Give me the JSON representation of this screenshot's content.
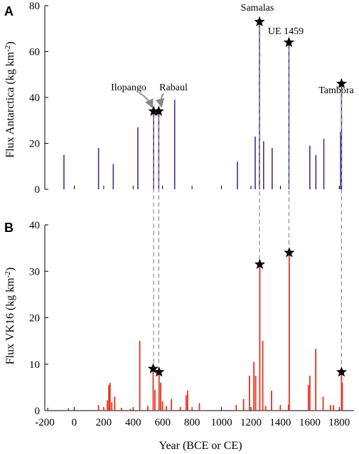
{
  "chart_data": [
    {
      "panel_label": "A",
      "type": "bar",
      "ylabel": "Flux Antarctica",
      "ylabel_unit": "(kg km",
      "ylabel_unit_exp": "-2",
      "ylabel_unit_end": ")",
      "ylim": [
        0,
        80
      ],
      "yticks": [
        "0",
        "20",
        "40",
        "60",
        "80"
      ],
      "xlim": [
        -200,
        1900
      ],
      "color": "#4b2a8c",
      "events": [
        {
          "x": -70,
          "y": 15
        },
        {
          "x": 165,
          "y": 18
        },
        {
          "x": 265,
          "y": 11
        },
        {
          "x": 432,
          "y": 27
        },
        {
          "x": 539,
          "y": 34
        },
        {
          "x": 574,
          "y": 34
        },
        {
          "x": 682,
          "y": 39
        },
        {
          "x": 1108,
          "y": 12
        },
        {
          "x": 1229,
          "y": 23
        },
        {
          "x": 1258,
          "y": 73
        },
        {
          "x": 1286,
          "y": 21
        },
        {
          "x": 1344,
          "y": 18
        },
        {
          "x": 1458,
          "y": 64
        },
        {
          "x": 1600,
          "y": 19
        },
        {
          "x": 1641,
          "y": 15
        },
        {
          "x": 1695,
          "y": 22
        },
        {
          "x": 1809,
          "y": 25
        },
        {
          "x": 1815,
          "y": 46
        }
      ],
      "stars": [
        {
          "x": 539,
          "y": 34
        },
        {
          "x": 574,
          "y": 34
        },
        {
          "x": 1258,
          "y": 73
        },
        {
          "x": 1458,
          "y": 64
        },
        {
          "x": 1815,
          "y": 46
        }
      ],
      "annotations": [
        {
          "text": "Samalas"
        },
        {
          "text": "UE 1459"
        },
        {
          "text": "Tambora"
        },
        {
          "text": "Ilopango"
        },
        {
          "text": "Rabaul"
        }
      ]
    },
    {
      "panel_label": "B",
      "type": "bar",
      "ylabel": "Flux VK16",
      "ylabel_unit": "(kg km",
      "ylabel_unit_exp": "-2",
      "ylabel_unit_end": ")",
      "ylim": [
        0,
        40
      ],
      "yticks": [
        "0",
        "10",
        "20",
        "30",
        "40"
      ],
      "xlim": [
        -200,
        1900
      ],
      "xticks": [
        "-200",
        "0",
        "200",
        "400",
        "600",
        "800",
        "1000",
        "1200",
        "1400",
        "1600",
        "1800"
      ],
      "xlabel": "Year (BCE or CE)",
      "color": "#e8321e",
      "events": [
        {
          "x": -180,
          "y": 0.6
        },
        {
          "x": -40,
          "y": 0.5
        },
        {
          "x": 165,
          "y": 1.2
        },
        {
          "x": 200,
          "y": 0.6
        },
        {
          "x": 225,
          "y": 2.2
        },
        {
          "x": 235,
          "y": 5.5
        },
        {
          "x": 243,
          "y": 6.0
        },
        {
          "x": 255,
          "y": 1.8
        },
        {
          "x": 275,
          "y": 3.0
        },
        {
          "x": 320,
          "y": 0.6
        },
        {
          "x": 380,
          "y": 0.4
        },
        {
          "x": 445,
          "y": 15.0
        },
        {
          "x": 500,
          "y": 1.0
        },
        {
          "x": 536,
          "y": 9.0
        },
        {
          "x": 548,
          "y": 4.5
        },
        {
          "x": 576,
          "y": 8.3
        },
        {
          "x": 587,
          "y": 6.0
        },
        {
          "x": 600,
          "y": 2.0
        },
        {
          "x": 625,
          "y": 1.0
        },
        {
          "x": 660,
          "y": 2.5
        },
        {
          "x": 720,
          "y": 0.8
        },
        {
          "x": 760,
          "y": 3.3
        },
        {
          "x": 770,
          "y": 4.3
        },
        {
          "x": 850,
          "y": 1.6
        },
        {
          "x": 1100,
          "y": 1.2
        },
        {
          "x": 1150,
          "y": 2.5
        },
        {
          "x": 1190,
          "y": 7.5
        },
        {
          "x": 1220,
          "y": 10.5
        },
        {
          "x": 1232,
          "y": 7.5
        },
        {
          "x": 1260,
          "y": 31.5
        },
        {
          "x": 1280,
          "y": 15.0
        },
        {
          "x": 1300,
          "y": 1.0
        },
        {
          "x": 1340,
          "y": 4.3
        },
        {
          "x": 1400,
          "y": 1.2
        },
        {
          "x": 1455,
          "y": 1.3
        },
        {
          "x": 1460,
          "y": 34.0
        },
        {
          "x": 1590,
          "y": 5.5
        },
        {
          "x": 1600,
          "y": 7.5
        },
        {
          "x": 1640,
          "y": 13.3
        },
        {
          "x": 1690,
          "y": 3.0
        },
        {
          "x": 1740,
          "y": 1.2
        },
        {
          "x": 1760,
          "y": 1.2
        },
        {
          "x": 1815,
          "y": 8.3
        },
        {
          "x": 1820,
          "y": 6.0
        }
      ],
      "stars": [
        {
          "x": 536,
          "y": 9.0
        },
        {
          "x": 576,
          "y": 8.3
        },
        {
          "x": 1260,
          "y": 31.5
        },
        {
          "x": 1460,
          "y": 34.0
        },
        {
          "x": 1815,
          "y": 8.3
        }
      ]
    }
  ],
  "connectors": [
    {
      "x": 539
    },
    {
      "x": 574
    },
    {
      "x": 1258
    },
    {
      "x": 1458
    },
    {
      "x": 1815
    }
  ]
}
